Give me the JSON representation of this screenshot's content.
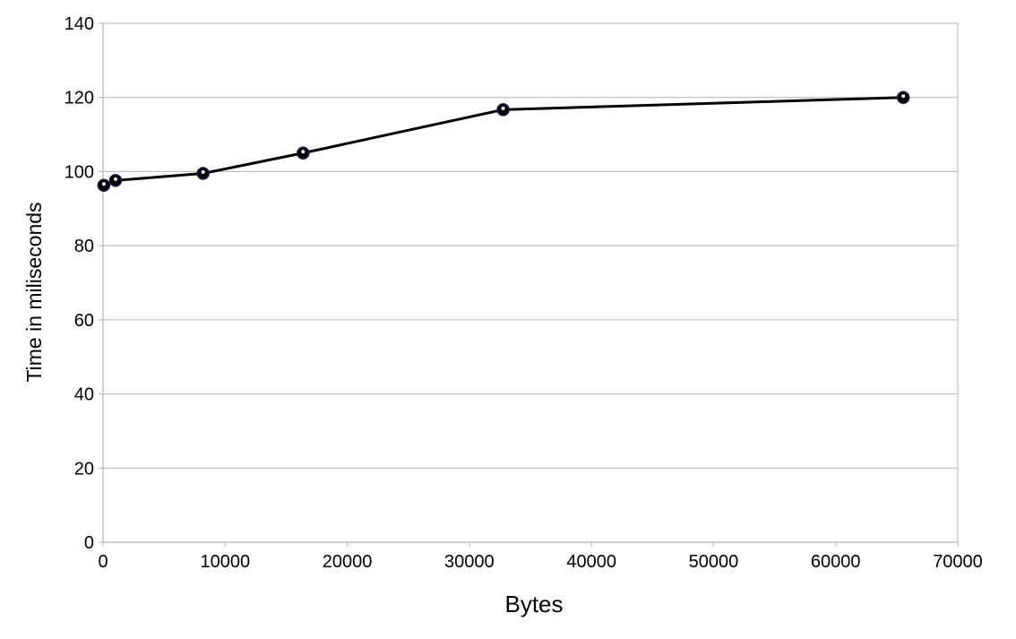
{
  "chart_data": {
    "type": "line",
    "title": "",
    "xlabel": "Bytes",
    "ylabel": "Time in miliseconds",
    "xlim": [
      0,
      70000
    ],
    "ylim": [
      0,
      140
    ],
    "xticks": [
      0,
      10000,
      20000,
      30000,
      40000,
      50000,
      60000,
      70000
    ],
    "yticks": [
      0,
      20,
      40,
      60,
      80,
      100,
      120,
      140
    ],
    "grid": "horizontal",
    "legend": "none",
    "colors": {
      "line": "#000000",
      "marker_outline": "#1a1a40",
      "grid": "#b3b3b3"
    },
    "series": [
      {
        "x": [
          64,
          1024,
          8192,
          16384,
          32768,
          65536
        ],
        "y": [
          96.3,
          97.6,
          99.5,
          105.0,
          116.7,
          120.0
        ]
      }
    ]
  }
}
